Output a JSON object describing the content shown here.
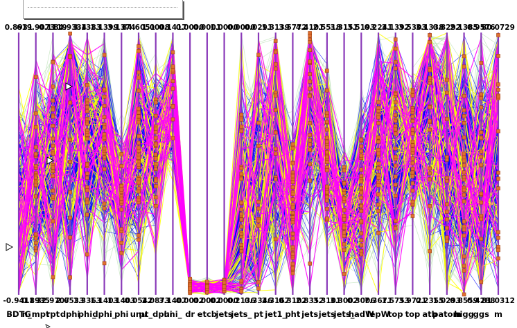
{
  "chart_data": {
    "type": "parallel-coordinates",
    "axes": [
      {
        "label": "BDTG",
        "max": "0.8931",
        "min": "-0.9411"
      },
      {
        "label": "n_mpt",
        "max": "619.9073",
        "min": "0.8935"
      },
      {
        "label": "rpt",
        "max": "0.1119",
        "min": "32.9707"
      },
      {
        "label": "dphi",
        "max": "84.9334",
        "min": "2.6533"
      },
      {
        "label": "phi_",
        "max": "3.1383",
        "min": "1.3363"
      },
      {
        "label": "dphi_",
        "max": "1.1399",
        "min": "1.1403"
      },
      {
        "label": "phi",
        "max": "3.1374",
        "min": "1.1403"
      },
      {
        "label": "unu",
        "max": "84.6051",
        "min": "0.0542"
      },
      {
        "label": "pt_dphi",
        "max": "1.0008",
        "min": "2.0873"
      },
      {
        "label": "uni_",
        "max": "0.1417",
        "min": "3.1407"
      },
      {
        "label": "dr",
        "max": "0.0000",
        "min": "0.0002"
      },
      {
        "label": "etcb",
        "max": "0.0001",
        "min": "0.0002"
      },
      {
        "label": "jets",
        "max": "1.0000",
        "min": "0.0000"
      },
      {
        "label": "jets_",
        "max": "0.0000",
        "min": "0.2136"
      },
      {
        "label": "pt",
        "max": "0.0291",
        "min": "0.3346"
      },
      {
        "label": "jet1_",
        "max": "1.3139",
        "min": "3.3167"
      },
      {
        "label": "pht",
        "max": "3.5772",
        "min": "0.3102"
      },
      {
        "label": "jets",
        "max": "4.4101",
        "min": "2.8352"
      },
      {
        "label": "jets",
        "max": "2.5518",
        "min": "3.3101"
      },
      {
        "label": "jets_",
        "max": "3.3151",
        "min": "3.3002"
      },
      {
        "label": "hadW",
        "max": "3.5193",
        "min": "0.3006"
      },
      {
        "label": "lepW",
        "max": "0.2241",
        "min": "7.3671"
      },
      {
        "label": "top",
        "max": "3.1392",
        "min": "1.5753"
      },
      {
        "label": "top",
        "max": "3.5303",
        "min": "3.9721"
      },
      {
        "label": "atb",
        "max": "3.1338",
        "min": "0.2355"
      },
      {
        "label": "patom",
        "max": "0.8292",
        "min": "1.0293"
      },
      {
        "label": "higg",
        "max": "2.1385",
        "min": "0.8559"
      },
      {
        "label": "ggs",
        "max": "0.9576",
        "min": "0.4288"
      },
      {
        "label": "m",
        "max": "80.0729",
        "min": "81.0312"
      }
    ],
    "series_colors": {
      "background": "#a8d8a0",
      "signal": "#0000ff",
      "highlight_a": "#ffff00",
      "highlight_b": "#ff00ff",
      "markers": "#e07030"
    },
    "legend": "top-left"
  }
}
